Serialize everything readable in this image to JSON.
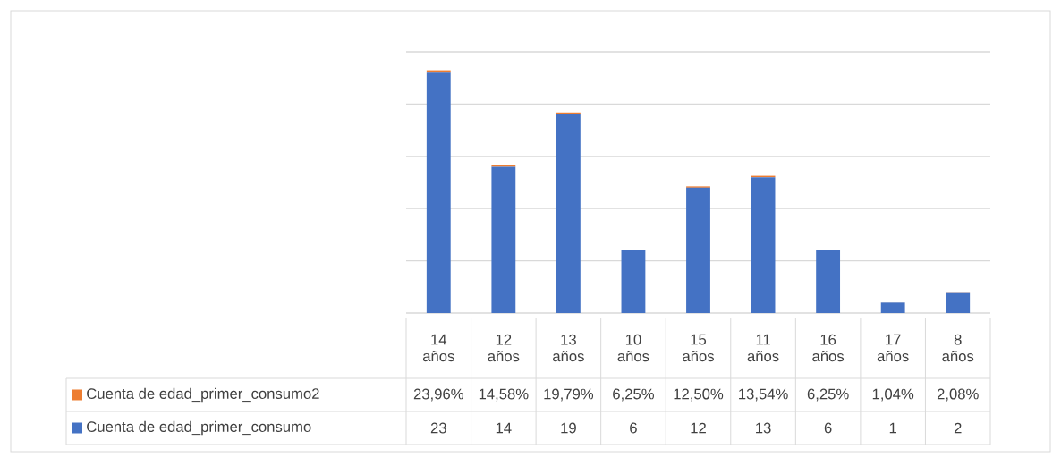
{
  "chart_data": {
    "type": "bar",
    "stacked": true,
    "categories": [
      "14 años",
      "12 años",
      "13 años",
      "10 años",
      "15 años",
      "11 años",
      "16 años",
      "17 años",
      "8 años"
    ],
    "series": [
      {
        "name": "Cuenta de edad_primer_consumo",
        "color": "#4472c4",
        "values": [
          23,
          14,
          19,
          6,
          12,
          13,
          6,
          1,
          2
        ],
        "value_labels": [
          "23",
          "14",
          "19",
          "6",
          "12",
          "13",
          "6",
          "1",
          "2"
        ]
      },
      {
        "name": "Cuenta de edad_primer_consumo2",
        "color": "#ed7d31",
        "values": [
          0.2396,
          0.1458,
          0.1979,
          0.0625,
          0.125,
          0.1354,
          0.0625,
          0.0104,
          0.0208
        ],
        "value_labels": [
          "23,96%",
          "14,58%",
          "19,79%",
          "6,25%",
          "12,50%",
          "13,54%",
          "6,25%",
          "1,04%",
          "2,08%"
        ]
      }
    ],
    "ylim": [
      0,
      25
    ],
    "yticks": [
      {
        "value": 0,
        "label": null
      },
      {
        "value": 5,
        "label": null
      },
      {
        "value": 10,
        "label": null
      },
      {
        "value": 15,
        "label": null
      },
      {
        "value": 20,
        "label": null
      },
      {
        "value": 25,
        "label": null
      }
    ],
    "grid": "y",
    "legend": "bottom left"
  }
}
